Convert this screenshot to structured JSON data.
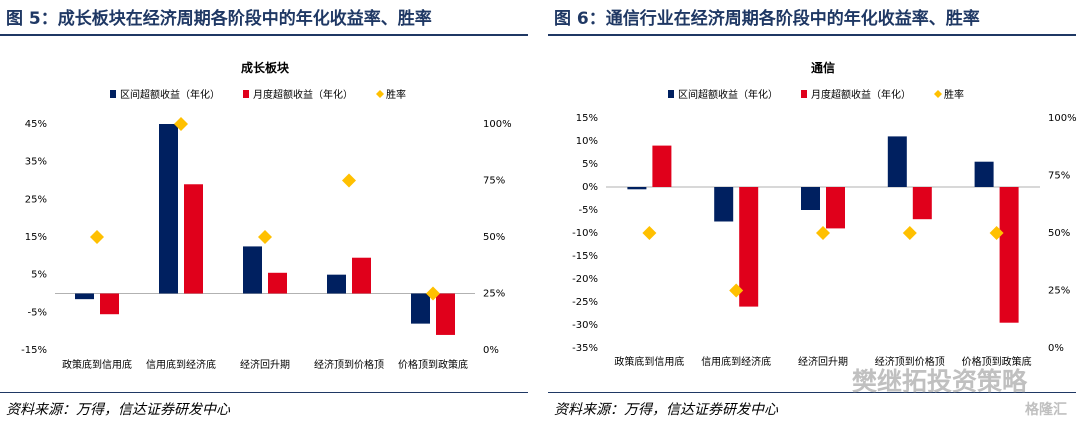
{
  "colors": {
    "navy": "#002060",
    "red": "#e0001b",
    "gold": "#ffc000",
    "title": "#1f3864"
  },
  "watermark": {
    "text": "樊继拓投资策略",
    "brand": "格隆汇"
  },
  "panels": [
    {
      "fig_title": "图 5：成长板块在经济周期各阶段中的年化收益率、胜率",
      "source": "资料来源：万得，信达证券研发中心",
      "chart_data": {
        "type": "bar",
        "title": "成长板块",
        "categories": [
          "政策底到信用底",
          "信用底到经济底",
          "经济回升期",
          "经济顶到价格顶",
          "价格顶到政策底"
        ],
        "series": [
          {
            "name": "区间超额收益（年化）",
            "values": [
              -1.5,
              45,
              12.5,
              5,
              -8
            ],
            "axis": "left",
            "color": "#002060"
          },
          {
            "name": "月度超额收益（年化）",
            "values": [
              -5.5,
              29,
              5.5,
              9.5,
              -11
            ],
            "axis": "left",
            "color": "#e0001b"
          },
          {
            "name": "胜率",
            "values": [
              50,
              100,
              50,
              75,
              25
            ],
            "axis": "right",
            "marker": "diamond",
            "color": "#ffc000"
          }
        ],
        "y_left": {
          "min": -15,
          "max": 45,
          "ticks": [
            "45%",
            "35%",
            "25%",
            "15%",
            "5%",
            "-5%",
            "-15%"
          ],
          "tick_values": [
            45,
            35,
            25,
            15,
            5,
            -5,
            -15
          ]
        },
        "y_right": {
          "min": 0,
          "max": 100,
          "ticks": [
            "100%",
            "75%",
            "50%",
            "25%",
            "0%"
          ],
          "tick_values": [
            100,
            75,
            50,
            25,
            0
          ]
        },
        "legend": "top"
      }
    },
    {
      "fig_title": "图 6：通信行业在经济周期各阶段中的年化收益率、胜率",
      "source": "资料来源：万得，信达证券研发中心",
      "chart_data": {
        "type": "bar",
        "title": "通信",
        "categories": [
          "政策底到信用底",
          "信用底到经济底",
          "经济回升期",
          "经济顶到价格顶",
          "价格顶到政策底"
        ],
        "series": [
          {
            "name": "区间超额收益（年化）",
            "values": [
              -0.5,
              -7.5,
              -5,
              11,
              5.5
            ],
            "axis": "left",
            "color": "#002060"
          },
          {
            "name": "月度超额收益（年化）",
            "values": [
              9,
              -26,
              -9,
              -7,
              -29.5
            ],
            "axis": "left",
            "color": "#e0001b"
          },
          {
            "name": "胜率",
            "values": [
              50,
              25,
              50,
              50,
              50
            ],
            "axis": "right",
            "marker": "diamond",
            "color": "#ffc000"
          }
        ],
        "y_left": {
          "min": -35,
          "max": 15,
          "ticks": [
            "15%",
            "10%",
            "5%",
            "0%",
            "-5%",
            "-10%",
            "-15%",
            "-20%",
            "-25%",
            "-30%",
            "-35%"
          ],
          "tick_values": [
            15,
            10,
            5,
            0,
            -5,
            -10,
            -15,
            -20,
            -25,
            -30,
            -35
          ]
        },
        "y_right": {
          "min": 0,
          "max": 100,
          "ticks": [
            "100%",
            "75%",
            "50%",
            "25%",
            "0%"
          ],
          "tick_values": [
            100,
            75,
            50,
            25,
            0
          ]
        },
        "legend": "top"
      }
    }
  ]
}
